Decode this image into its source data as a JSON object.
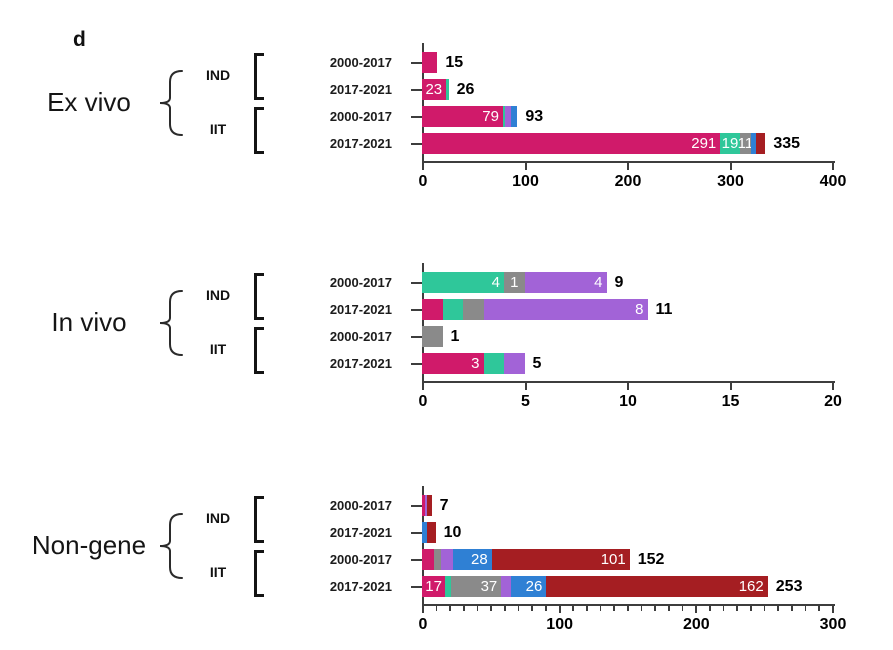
{
  "panel_label": "d",
  "colors": {
    "pink": "#D01A6A",
    "green": "#2FC79A",
    "gray": "#8A8A8A",
    "purple": "#A263D7",
    "blue": "#2F80D4",
    "darkred": "#A51E22",
    "axis": "#3d3d3d",
    "text": "#000000",
    "inner_label": "#ffffff"
  },
  "chart_data": [
    {
      "type": "bar",
      "orientation": "horizontal",
      "group": "Ex vivo",
      "subgroups": [
        "IND",
        "IIT"
      ],
      "xlim": [
        0,
        400
      ],
      "x_ticks": [
        0,
        100,
        200,
        300,
        400
      ],
      "minor_tick_step": null,
      "rows": [
        {
          "subgroup": "IND",
          "period": "2000-2017",
          "total": 15,
          "segments": [
            {
              "color": "pink",
              "value": 15
            }
          ]
        },
        {
          "subgroup": "IND",
          "period": "2017-2021",
          "total": 26,
          "segments": [
            {
              "color": "pink",
              "value": 23,
              "label": "23"
            },
            {
              "color": "green",
              "value": 3
            }
          ]
        },
        {
          "subgroup": "IIT",
          "period": "2000-2017",
          "total": 93,
          "segments": [
            {
              "color": "pink",
              "value": 79,
              "label": "79"
            },
            {
              "color": "green",
              "value": 2
            },
            {
              "color": "purple",
              "value": 6
            },
            {
              "color": "blue",
              "value": 6
            }
          ]
        },
        {
          "subgroup": "IIT",
          "period": "2017-2021",
          "total": 335,
          "segments": [
            {
              "color": "pink",
              "value": 291,
              "label": "291"
            },
            {
              "color": "green",
              "value": 19,
              "label": "19"
            },
            {
              "color": "gray",
              "value": 11,
              "label": "11"
            },
            {
              "color": "blue",
              "value": 5
            },
            {
              "color": "darkred",
              "value": 9
            }
          ]
        }
      ]
    },
    {
      "type": "bar",
      "orientation": "horizontal",
      "group": "In vivo",
      "subgroups": [
        "IND",
        "IIT"
      ],
      "xlim": [
        0,
        20
      ],
      "x_ticks": [
        0,
        5,
        10,
        15,
        20
      ],
      "minor_tick_step": null,
      "rows": [
        {
          "subgroup": "IND",
          "period": "2000-2017",
          "total": 9,
          "segments": [
            {
              "color": "green",
              "value": 4,
              "label": "4"
            },
            {
              "color": "gray",
              "value": 1,
              "label": "1"
            },
            {
              "color": "purple",
              "value": 4,
              "label": "4"
            }
          ]
        },
        {
          "subgroup": "IND",
          "period": "2017-2021",
          "total": 11,
          "segments": [
            {
              "color": "pink",
              "value": 1
            },
            {
              "color": "green",
              "value": 1
            },
            {
              "color": "gray",
              "value": 1
            },
            {
              "color": "purple",
              "value": 8,
              "label": "8"
            }
          ]
        },
        {
          "subgroup": "IIT",
          "period": "2000-2017",
          "total": 1,
          "segments": [
            {
              "color": "gray",
              "value": 1
            }
          ]
        },
        {
          "subgroup": "IIT",
          "period": "2017-2021",
          "total": 5,
          "segments": [
            {
              "color": "pink",
              "value": 3,
              "label": "3"
            },
            {
              "color": "green",
              "value": 1
            },
            {
              "color": "purple",
              "value": 1
            }
          ]
        }
      ]
    },
    {
      "type": "bar",
      "orientation": "horizontal",
      "group": "Non-gene",
      "subgroups": [
        "IND",
        "IIT"
      ],
      "xlim": [
        0,
        300
      ],
      "x_ticks": [
        0,
        100,
        200,
        300
      ],
      "minor_tick_step": 10,
      "rows": [
        {
          "subgroup": "IND",
          "period": "2000-2017",
          "total": 7,
          "segments": [
            {
              "color": "pink",
              "value": 2
            },
            {
              "color": "purple",
              "value": 2
            },
            {
              "color": "darkred",
              "value": 3
            }
          ]
        },
        {
          "subgroup": "IND",
          "period": "2017-2021",
          "total": 10,
          "segments": [
            {
              "color": "blue",
              "value": 4
            },
            {
              "color": "darkred",
              "value": 6
            }
          ]
        },
        {
          "subgroup": "IIT",
          "period": "2000-2017",
          "total": 152,
          "segments": [
            {
              "color": "pink",
              "value": 9
            },
            {
              "color": "gray",
              "value": 5
            },
            {
              "color": "purple",
              "value": 9
            },
            {
              "color": "blue",
              "value": 28,
              "label": "28"
            },
            {
              "color": "darkred",
              "value": 101,
              "label": "101"
            }
          ]
        },
        {
          "subgroup": "IIT",
          "period": "2017-2021",
          "total": 253,
          "segments": [
            {
              "color": "pink",
              "value": 17,
              "label": "17"
            },
            {
              "color": "green",
              "value": 4
            },
            {
              "color": "gray",
              "value": 37,
              "label": "37"
            },
            {
              "color": "purple",
              "value": 7
            },
            {
              "color": "blue",
              "value": 26,
              "label": "26"
            },
            {
              "color": "darkred",
              "value": 162,
              "label": "162"
            }
          ]
        }
      ]
    }
  ]
}
